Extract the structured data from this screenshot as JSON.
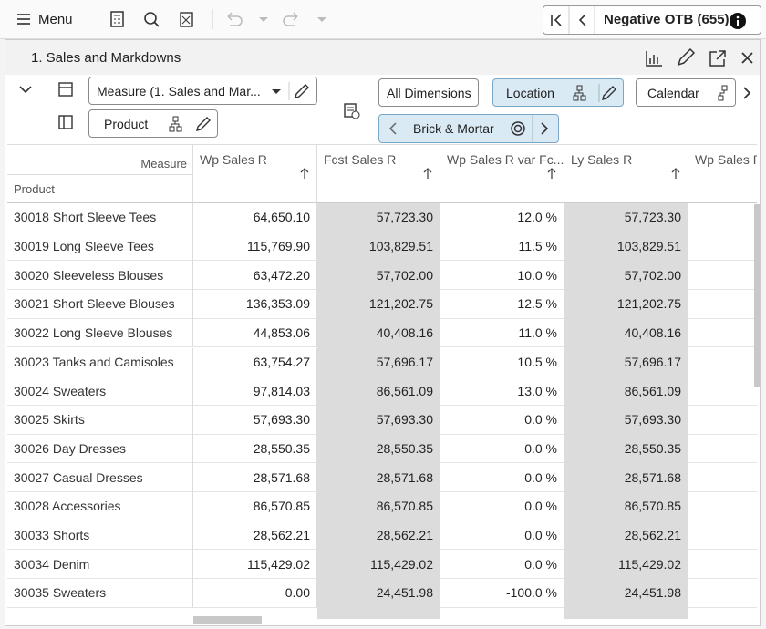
{
  "toolbar": {
    "menu": "Menu",
    "alert": "Negative OTB (655)"
  },
  "panel": {
    "title": "1. Sales and Markdowns"
  },
  "controls": {
    "measure": "Measure (1. Sales and Mar...",
    "product": "Product",
    "all_dimensions": "All Dimensions",
    "location": "Location",
    "calendar": "Calendar",
    "brick": "Brick & Mortar"
  },
  "table": {
    "corner_measure": "Measure",
    "corner_product": "Product",
    "columns": [
      "Wp Sales R",
      "Fcst Sales R",
      "Wp Sales R var Fc...",
      "Ly Sales R",
      "Wp Sales R"
    ],
    "rows": [
      [
        "30018 Short Sleeve Tees",
        "64,650.10",
        "57,723.30",
        "12.0 %",
        "57,723.30"
      ],
      [
        "30019 Long Sleeve Tees",
        "115,769.90",
        "103,829.51",
        "11.5 %",
        "103,829.51"
      ],
      [
        "30020 Sleeveless Blouses",
        "63,472.20",
        "57,702.00",
        "10.0 %",
        "57,702.00"
      ],
      [
        "30021 Short Sleeve Blouses",
        "136,353.09",
        "121,202.75",
        "12.5 %",
        "121,202.75"
      ],
      [
        "30022 Long Sleeve Blouses",
        "44,853.06",
        "40,408.16",
        "11.0 %",
        "40,408.16"
      ],
      [
        "30023 Tanks and Camisoles",
        "63,754.27",
        "57,696.17",
        "10.5 %",
        "57,696.17"
      ],
      [
        "30024 Sweaters",
        "97,814.03",
        "86,561.09",
        "13.0 %",
        "86,561.09"
      ],
      [
        "30025 Skirts",
        "57,693.30",
        "57,693.30",
        "0.0 %",
        "57,693.30"
      ],
      [
        "30026 Day Dresses",
        "28,550.35",
        "28,550.35",
        "0.0 %",
        "28,550.35"
      ],
      [
        "30027 Casual Dresses",
        "28,571.68",
        "28,571.68",
        "0.0 %",
        "28,571.68"
      ],
      [
        "30028 Accessories",
        "86,570.85",
        "86,570.85",
        "0.0 %",
        "86,570.85"
      ],
      [
        "30033 Shorts",
        "28,562.21",
        "28,562.21",
        "0.0 %",
        "28,562.21"
      ],
      [
        "30034 Denim",
        "115,429.02",
        "115,429.02",
        "0.0 %",
        "115,429.02"
      ],
      [
        "30035 Sweaters",
        "0.00",
        "24,451.98",
        "-100.0 %",
        "24,451.98"
      ]
    ]
  }
}
